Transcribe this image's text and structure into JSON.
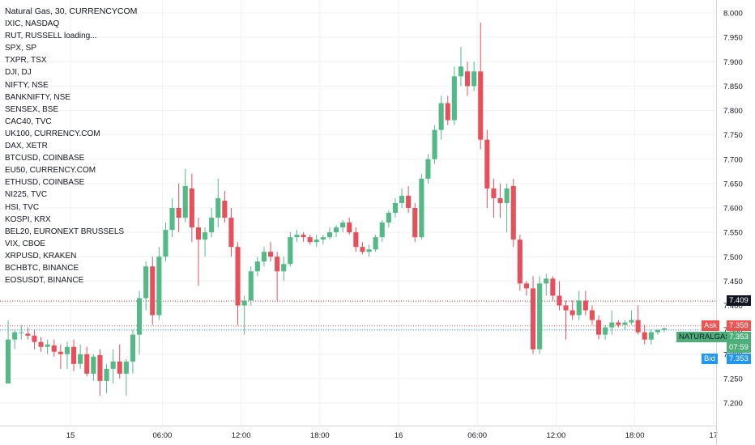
{
  "legend": {
    "title": "Natural Gas, 30, CURRENCYCOM",
    "symbols": [
      "IXIC, NASDAQ",
      "RUT, RUSSELL loading...",
      "SPX, SP",
      "TXPR, TSX",
      "DJI, DJ",
      "NIFTY, NSE",
      "BANKNIFTY, NSE",
      "SENSEX, BSE",
      "CAC40, TVC",
      "UK100, CURRENCY.COM",
      "DAX, XETR",
      "BTCUSD, COINBASE",
      "EU50, CURRENCY.COM",
      "ETHUSD, COINBASE",
      "NI225, TVC",
      "HSI, TVC",
      "KOSPI, KRX",
      "BEL20, EURONEXT BRUSSELS",
      "VIX, CBOE",
      "XRPUSD, KRAKEN",
      "BCHBTC, BINANCE",
      "EOSUSDT, BINANCE"
    ]
  },
  "price_tags": {
    "line_value": "7.409",
    "ask_label": "Ask",
    "ask_value": "7.358",
    "symbol_label": "NATURALGAS",
    "last_value": "7.353",
    "countdown": "07:59",
    "bid_label": "Bid",
    "bid_value": "7.353"
  },
  "colors": {
    "up": "#26a69a",
    "up_fill": "#53b987",
    "down": "#e5505a",
    "ask": "#ef5350",
    "bid": "#2196f3",
    "last": "#4caf7a",
    "line": "#b22833"
  },
  "chart_data": {
    "type": "candlestick",
    "symbol": "Natural Gas, 30, CURRENCYCOM",
    "ylim": [
      7.165,
      8.025
    ],
    "y_ticks": [
      "8.000",
      "7.950",
      "7.900",
      "7.850",
      "7.800",
      "7.750",
      "7.700",
      "7.650",
      "7.600",
      "7.550",
      "7.500",
      "7.450",
      "7.400",
      "7.350",
      "7.300",
      "7.250",
      "7.200"
    ],
    "x_ticks": [
      "15",
      "06:00",
      "12:00",
      "18:00",
      "16",
      "06:00",
      "12:00",
      "18:00",
      "17"
    ],
    "x_tick_bars": [
      10,
      24,
      36,
      48,
      60,
      72,
      84,
      96,
      108
    ],
    "current_price_line": 7.409,
    "candles": [
      {
        "o": 7.24,
        "h": 7.37,
        "l": 7.24,
        "c": 7.33
      },
      {
        "o": 7.33,
        "h": 7.35,
        "l": 7.31,
        "c": 7.345
      },
      {
        "o": 7.345,
        "h": 7.36,
        "l": 7.33,
        "c": 7.345
      },
      {
        "o": 7.342,
        "h": 7.355,
        "l": 7.33,
        "c": 7.338
      },
      {
        "o": 7.338,
        "h": 7.35,
        "l": 7.31,
        "c": 7.325
      },
      {
        "o": 7.325,
        "h": 7.335,
        "l": 7.305,
        "c": 7.315
      },
      {
        "o": 7.315,
        "h": 7.33,
        "l": 7.3,
        "c": 7.32
      },
      {
        "o": 7.318,
        "h": 7.33,
        "l": 7.295,
        "c": 7.305
      },
      {
        "o": 7.305,
        "h": 7.32,
        "l": 7.27,
        "c": 7.3
      },
      {
        "o": 7.3,
        "h": 7.325,
        "l": 7.27,
        "c": 7.315
      },
      {
        "o": 7.315,
        "h": 7.33,
        "l": 7.265,
        "c": 7.28
      },
      {
        "o": 7.28,
        "h": 7.32,
        "l": 7.27,
        "c": 7.3
      },
      {
        "o": 7.3,
        "h": 7.315,
        "l": 7.255,
        "c": 7.26
      },
      {
        "o": 7.26,
        "h": 7.3,
        "l": 7.245,
        "c": 7.295
      },
      {
        "o": 7.298,
        "h": 7.31,
        "l": 7.215,
        "c": 7.245
      },
      {
        "o": 7.245,
        "h": 7.28,
        "l": 7.22,
        "c": 7.27
      },
      {
        "o": 7.27,
        "h": 7.31,
        "l": 7.24,
        "c": 7.285
      },
      {
        "o": 7.285,
        "h": 7.32,
        "l": 7.25,
        "c": 7.26
      },
      {
        "o": 7.26,
        "h": 7.29,
        "l": 7.215,
        "c": 7.285
      },
      {
        "o": 7.285,
        "h": 7.35,
        "l": 7.26,
        "c": 7.34
      },
      {
        "o": 7.34,
        "h": 7.43,
        "l": 7.3,
        "c": 7.415
      },
      {
        "o": 7.415,
        "h": 7.49,
        "l": 7.39,
        "c": 7.48
      },
      {
        "o": 7.48,
        "h": 7.5,
        "l": 7.36,
        "c": 7.38
      },
      {
        "o": 7.38,
        "h": 7.52,
        "l": 7.37,
        "c": 7.5
      },
      {
        "o": 7.5,
        "h": 7.57,
        "l": 7.49,
        "c": 7.555
      },
      {
        "o": 7.555,
        "h": 7.62,
        "l": 7.54,
        "c": 7.6
      },
      {
        "o": 7.6,
        "h": 7.65,
        "l": 7.55,
        "c": 7.58
      },
      {
        "o": 7.58,
        "h": 7.68,
        "l": 7.57,
        "c": 7.645
      },
      {
        "o": 7.64,
        "h": 7.67,
        "l": 7.53,
        "c": 7.56
      },
      {
        "o": 7.56,
        "h": 7.58,
        "l": 7.44,
        "c": 7.535
      },
      {
        "o": 7.535,
        "h": 7.56,
        "l": 7.5,
        "c": 7.55
      },
      {
        "o": 7.55,
        "h": 7.6,
        "l": 7.54,
        "c": 7.58
      },
      {
        "o": 7.58,
        "h": 7.66,
        "l": 7.56,
        "c": 7.62
      },
      {
        "o": 7.615,
        "h": 7.635,
        "l": 7.57,
        "c": 7.58
      },
      {
        "o": 7.58,
        "h": 7.6,
        "l": 7.5,
        "c": 7.52
      },
      {
        "o": 7.52,
        "h": 7.53,
        "l": 7.36,
        "c": 7.4
      },
      {
        "o": 7.4,
        "h": 7.42,
        "l": 7.34,
        "c": 7.41
      },
      {
        "o": 7.41,
        "h": 7.48,
        "l": 7.4,
        "c": 7.47
      },
      {
        "o": 7.47,
        "h": 7.5,
        "l": 7.46,
        "c": 7.49
      },
      {
        "o": 7.49,
        "h": 7.52,
        "l": 7.48,
        "c": 7.51
      },
      {
        "o": 7.51,
        "h": 7.53,
        "l": 7.49,
        "c": 7.5
      },
      {
        "o": 7.5,
        "h": 7.51,
        "l": 7.41,
        "c": 7.47
      },
      {
        "o": 7.47,
        "h": 7.5,
        "l": 7.45,
        "c": 7.485
      },
      {
        "o": 7.485,
        "h": 7.55,
        "l": 7.48,
        "c": 7.54
      },
      {
        "o": 7.54,
        "h": 7.555,
        "l": 7.53,
        "c": 7.545
      },
      {
        "o": 7.545,
        "h": 7.55,
        "l": 7.53,
        "c": 7.54
      },
      {
        "o": 7.54,
        "h": 7.545,
        "l": 7.525,
        "c": 7.53
      },
      {
        "o": 7.53,
        "h": 7.545,
        "l": 7.52,
        "c": 7.535
      },
      {
        "o": 7.535,
        "h": 7.545,
        "l": 7.525,
        "c": 7.54
      },
      {
        "o": 7.54,
        "h": 7.56,
        "l": 7.535,
        "c": 7.55
      },
      {
        "o": 7.55,
        "h": 7.565,
        "l": 7.54,
        "c": 7.56
      },
      {
        "o": 7.56,
        "h": 7.575,
        "l": 7.55,
        "c": 7.57
      },
      {
        "o": 7.57,
        "h": 7.58,
        "l": 7.545,
        "c": 7.55
      },
      {
        "o": 7.55,
        "h": 7.56,
        "l": 7.51,
        "c": 7.52
      },
      {
        "o": 7.52,
        "h": 7.53,
        "l": 7.505,
        "c": 7.51
      },
      {
        "o": 7.51,
        "h": 7.525,
        "l": 7.5,
        "c": 7.515
      },
      {
        "o": 7.515,
        "h": 7.545,
        "l": 7.51,
        "c": 7.54
      },
      {
        "o": 7.54,
        "h": 7.575,
        "l": 7.53,
        "c": 7.57
      },
      {
        "o": 7.57,
        "h": 7.595,
        "l": 7.56,
        "c": 7.59
      },
      {
        "o": 7.59,
        "h": 7.62,
        "l": 7.58,
        "c": 7.61
      },
      {
        "o": 7.61,
        "h": 7.64,
        "l": 7.6,
        "c": 7.625
      },
      {
        "o": 7.625,
        "h": 7.645,
        "l": 7.59,
        "c": 7.6
      },
      {
        "o": 7.6,
        "h": 7.61,
        "l": 7.53,
        "c": 7.54
      },
      {
        "o": 7.54,
        "h": 7.67,
        "l": 7.535,
        "c": 7.66
      },
      {
        "o": 7.66,
        "h": 7.71,
        "l": 7.65,
        "c": 7.7
      },
      {
        "o": 7.7,
        "h": 7.77,
        "l": 7.69,
        "c": 7.76
      },
      {
        "o": 7.76,
        "h": 7.83,
        "l": 7.74,
        "c": 7.815
      },
      {
        "o": 7.815,
        "h": 7.83,
        "l": 7.77,
        "c": 7.78
      },
      {
        "o": 7.78,
        "h": 7.89,
        "l": 7.77,
        "c": 7.87
      },
      {
        "o": 7.87,
        "h": 7.93,
        "l": 7.85,
        "c": 7.89
      },
      {
        "o": 7.88,
        "h": 7.9,
        "l": 7.83,
        "c": 7.85
      },
      {
        "o": 7.85,
        "h": 7.9,
        "l": 7.84,
        "c": 7.88
      },
      {
        "o": 7.88,
        "h": 7.98,
        "l": 7.72,
        "c": 7.74
      },
      {
        "o": 7.74,
        "h": 7.76,
        "l": 7.6,
        "c": 7.64
      },
      {
        "o": 7.64,
        "h": 7.66,
        "l": 7.58,
        "c": 7.62
      },
      {
        "o": 7.62,
        "h": 7.65,
        "l": 7.58,
        "c": 7.61
      },
      {
        "o": 7.61,
        "h": 7.65,
        "l": 7.55,
        "c": 7.64
      },
      {
        "o": 7.645,
        "h": 7.66,
        "l": 7.52,
        "c": 7.535
      },
      {
        "o": 7.535,
        "h": 7.545,
        "l": 7.43,
        "c": 7.445
      },
      {
        "o": 7.445,
        "h": 7.45,
        "l": 7.42,
        "c": 7.435
      },
      {
        "o": 7.435,
        "h": 7.46,
        "l": 7.3,
        "c": 7.31
      },
      {
        "o": 7.31,
        "h": 7.46,
        "l": 7.3,
        "c": 7.445
      },
      {
        "o": 7.445,
        "h": 7.465,
        "l": 7.42,
        "c": 7.455
      },
      {
        "o": 7.455,
        "h": 7.46,
        "l": 7.41,
        "c": 7.42
      },
      {
        "o": 7.42,
        "h": 7.45,
        "l": 7.39,
        "c": 7.4
      },
      {
        "o": 7.4,
        "h": 7.41,
        "l": 7.33,
        "c": 7.39
      },
      {
        "o": 7.39,
        "h": 7.41,
        "l": 7.37,
        "c": 7.38
      },
      {
        "o": 7.38,
        "h": 7.43,
        "l": 7.37,
        "c": 7.41
      },
      {
        "o": 7.41,
        "h": 7.43,
        "l": 7.38,
        "c": 7.39
      },
      {
        "o": 7.39,
        "h": 7.4,
        "l": 7.36,
        "c": 7.37
      },
      {
        "o": 7.37,
        "h": 7.38,
        "l": 7.33,
        "c": 7.34
      },
      {
        "o": 7.34,
        "h": 7.36,
        "l": 7.33,
        "c": 7.355
      },
      {
        "o": 7.355,
        "h": 7.39,
        "l": 7.34,
        "c": 7.365
      },
      {
        "o": 7.365,
        "h": 7.37,
        "l": 7.355,
        "c": 7.36
      },
      {
        "o": 7.36,
        "h": 7.37,
        "l": 7.35,
        "c": 7.365
      },
      {
        "o": 7.365,
        "h": 7.39,
        "l": 7.36,
        "c": 7.37
      },
      {
        "o": 7.37,
        "h": 7.4,
        "l": 7.34,
        "c": 7.345
      },
      {
        "o": 7.345,
        "h": 7.36,
        "l": 7.32,
        "c": 7.33
      },
      {
        "o": 7.33,
        "h": 7.35,
        "l": 7.32,
        "c": 7.345
      },
      {
        "o": 7.345,
        "h": 7.35,
        "l": 7.34,
        "c": 7.35
      },
      {
        "o": 7.35,
        "h": 7.355,
        "l": 7.345,
        "c": 7.353
      }
    ]
  }
}
